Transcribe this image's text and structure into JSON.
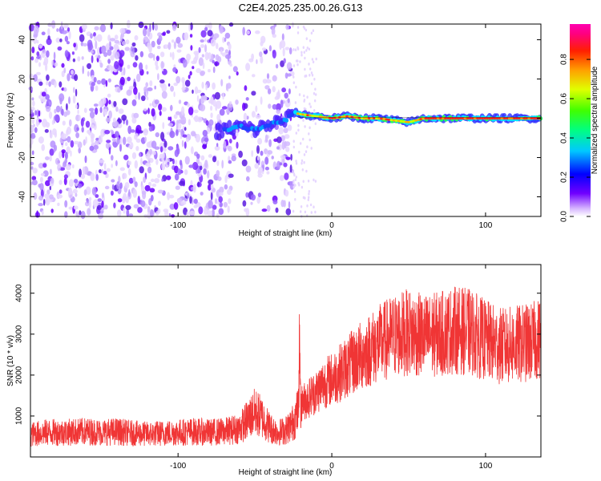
{
  "title": "C2E4.2025.235.00.26.G13",
  "chart_data": [
    {
      "type": "heatmap",
      "name": "spectrogram",
      "xlabel": "Height of straight line (km)",
      "ylabel": "Frequency (Hz)",
      "xlim": [
        -196,
        136
      ],
      "ylim": [
        -50,
        48
      ],
      "x_ticks": [
        -100,
        0,
        100
      ],
      "y_ticks": [
        -40,
        -20,
        0,
        20,
        40
      ],
      "colorbar": {
        "label": "Normalized spectral amplitude",
        "range": [
          0,
          0.98
        ],
        "ticks": [
          "0.0",
          "0.2",
          "0.4",
          "0.6",
          "0.8"
        ]
      },
      "description_series": [
        {
          "name": "noise-region",
          "x_range": [
            -196,
            -25
          ],
          "freq_range": [
            -50,
            48
          ]
        },
        {
          "name": "signal-ridge",
          "x": [
            -75,
            -60,
            -50,
            -40,
            -30,
            -25,
            -20,
            -10,
            0,
            10,
            20,
            30,
            40,
            50,
            60,
            70,
            80,
            90,
            100,
            110,
            120,
            130,
            136
          ],
          "freq": [
            -7,
            -4,
            -6,
            -3,
            -1,
            3,
            2,
            1,
            0,
            1,
            0,
            0,
            -1,
            -2,
            0,
            0,
            0,
            0,
            0,
            0,
            0,
            0,
            0
          ]
        }
      ]
    },
    {
      "type": "line",
      "name": "snr",
      "xlabel": "Height of straight line (km)",
      "ylabel": "SNR (10 * v/v)",
      "xlim": [
        -196,
        136
      ],
      "ylim": [
        0,
        4700
      ],
      "x_ticks": [
        -100,
        0,
        100
      ],
      "y_ticks": [
        1000,
        2000,
        3000,
        4000
      ],
      "color": "#f03535",
      "series": [
        {
          "name": "SNR",
          "x": [
            -196,
            -185,
            -175,
            -160,
            -150,
            -140,
            -130,
            -120,
            -110,
            -100,
            -90,
            -80,
            -70,
            -60,
            -55,
            -50,
            -45,
            -40,
            -35,
            -30,
            -25,
            -20,
            -15,
            -10,
            -5,
            0,
            10,
            20,
            30,
            40,
            50,
            60,
            70,
            80,
            90,
            100,
            110,
            120,
            130,
            136
          ],
          "y": [
            550,
            600,
            600,
            620,
            600,
            620,
            580,
            560,
            580,
            600,
            620,
            600,
            620,
            700,
            900,
            1100,
            950,
            700,
            600,
            650,
            850,
            1300,
            1450,
            1600,
            1800,
            1900,
            2200,
            2500,
            2750,
            2950,
            3050,
            2950,
            3000,
            3100,
            3050,
            2850,
            2700,
            2750,
            2800,
            2900
          ]
        }
      ]
    }
  ]
}
